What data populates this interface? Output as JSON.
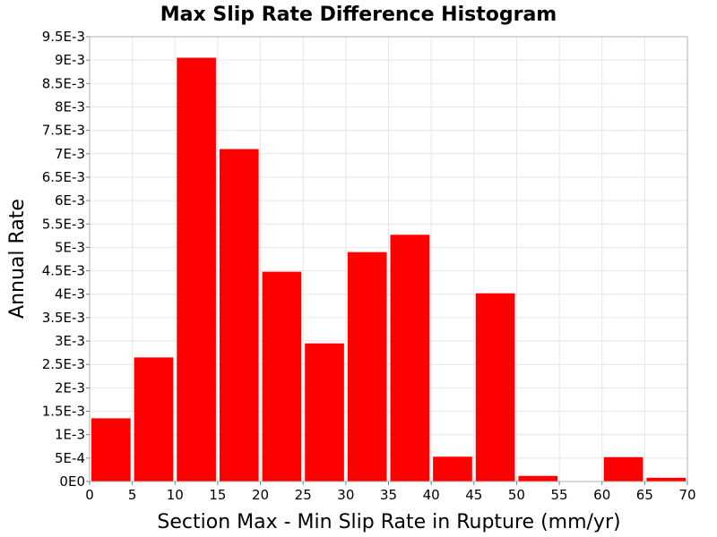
{
  "chart_data": {
    "type": "bar",
    "title": "Max Slip Rate Difference Histogram",
    "xlabel": "Section Max - Min Slip Rate in Rupture (mm/yr)",
    "ylabel": "Annual Rate",
    "xlim": [
      0,
      70
    ],
    "ylim": [
      0,
      0.0095
    ],
    "bin_width": 5,
    "grid": true,
    "bar_color": "#ff0000",
    "x_ticks": [
      0,
      5,
      10,
      15,
      20,
      25,
      30,
      35,
      40,
      45,
      50,
      55,
      60,
      65,
      70
    ],
    "x_tick_labels": [
      "0",
      "5",
      "10",
      "15",
      "20",
      "25",
      "30",
      "35",
      "40",
      "45",
      "50",
      "55",
      "60",
      "65",
      "70"
    ],
    "y_ticks": [
      0,
      0.0005,
      0.001,
      0.0015,
      0.002,
      0.0025,
      0.003,
      0.0035,
      0.004,
      0.0045,
      0.005,
      0.0055,
      0.006,
      0.0065,
      0.007,
      0.0075,
      0.008,
      0.0085,
      0.009,
      0.0095
    ],
    "y_tick_labels": [
      "0E0",
      "5E-4",
      "1E-3",
      "1.5E-3",
      "2E-3",
      "2.5E-3",
      "3E-3",
      "3.5E-3",
      "4E-3",
      "4.5E-3",
      "5E-3",
      "5.5E-3",
      "6E-3",
      "6.5E-3",
      "7E-3",
      "7.5E-3",
      "8E-3",
      "8.5E-3",
      "9E-3",
      "9.5E-3"
    ],
    "bins": [
      {
        "x_start": 0,
        "value": 0.00135
      },
      {
        "x_start": 5,
        "value": 0.00265
      },
      {
        "x_start": 10,
        "value": 0.00905
      },
      {
        "x_start": 15,
        "value": 0.0071
      },
      {
        "x_start": 20,
        "value": 0.00448
      },
      {
        "x_start": 25,
        "value": 0.00295
      },
      {
        "x_start": 30,
        "value": 0.0049
      },
      {
        "x_start": 35,
        "value": 0.00527
      },
      {
        "x_start": 40,
        "value": 0.00053
      },
      {
        "x_start": 45,
        "value": 0.00402
      },
      {
        "x_start": 50,
        "value": 0.00012
      },
      {
        "x_start": 55,
        "value": 0
      },
      {
        "x_start": 60,
        "value": 0.00052
      },
      {
        "x_start": 65,
        "value": 8e-05
      }
    ]
  }
}
